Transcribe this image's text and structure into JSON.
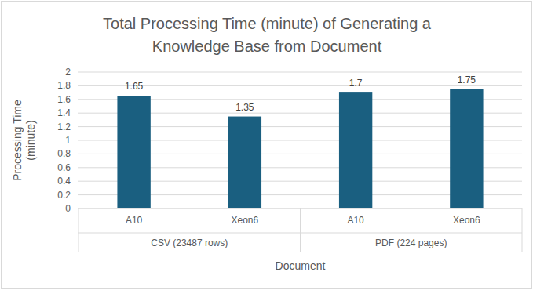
{
  "chart_data": {
    "type": "bar",
    "title": "Total Processing Time (minute) of Generating a Knowledge Base from Document",
    "y_label": "Processing Time (minute)",
    "x_label": "Document",
    "categories": [
      "A10",
      "Xeon6",
      "A10",
      "Xeon6"
    ],
    "category_groups": [
      "CSV (23487 rows)",
      "CSV (23487 rows)",
      "PDF (224 pages)",
      "PDF (224 pages)"
    ],
    "values": [
      1.65,
      1.35,
      1.7,
      1.75
    ],
    "color": "#1a5f80",
    "ylim": [
      0,
      2
    ],
    "yticks": [
      0,
      0.2,
      0.4,
      0.6,
      0.8,
      1,
      1.2,
      1.4,
      1.6,
      1.8,
      2
    ],
    "grid": true,
    "data_labels": true
  }
}
